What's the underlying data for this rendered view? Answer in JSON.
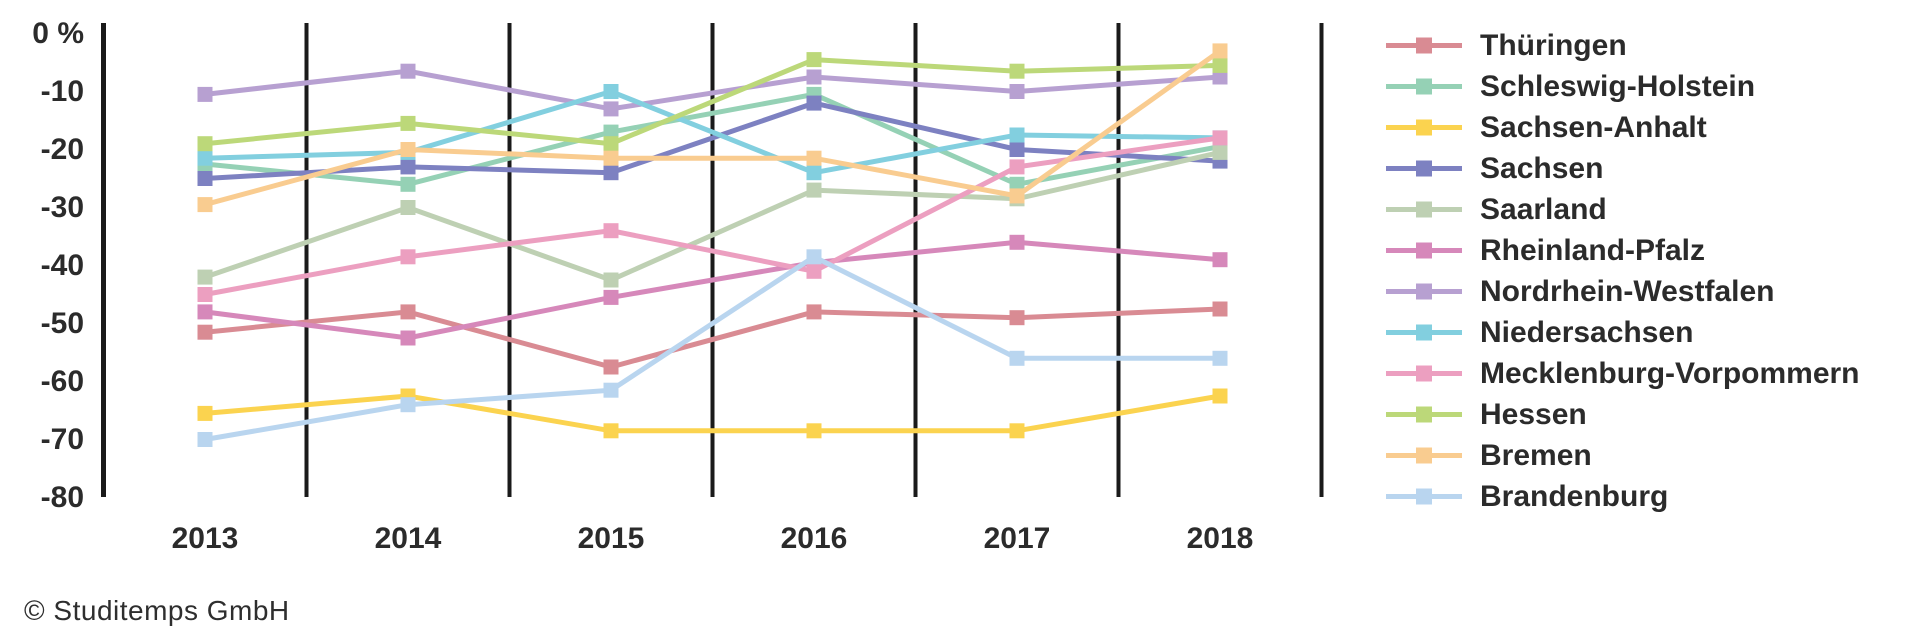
{
  "copyright": "© Studitemps GmbH",
  "colors": {
    "axis": "#1a1a1a",
    "text": "#2b2b2b"
  },
  "chart_data": {
    "type": "line",
    "title": "",
    "xlabel": "",
    "ylabel": "",
    "unit": "%",
    "x_categories": [
      "2013",
      "2014",
      "2015",
      "2016",
      "2017",
      "2018"
    ],
    "y_ticks": [
      {
        "value": 0,
        "label": "0 %"
      },
      {
        "value": -10,
        "label": "-10"
      },
      {
        "value": -20,
        "label": "-20"
      },
      {
        "value": -30,
        "label": "-30"
      },
      {
        "value": -40,
        "label": "-40"
      },
      {
        "value": -50,
        "label": "-50"
      },
      {
        "value": -60,
        "label": "-60"
      },
      {
        "value": -70,
        "label": "-70"
      },
      {
        "value": -80,
        "label": "-80"
      }
    ],
    "ylim": [
      -80,
      0
    ],
    "grid": "vertical lines between categories",
    "legend_position": "right",
    "marker": "square",
    "series": [
      {
        "name": "Thüringen",
        "color": "#d98b93",
        "values": [
          -51.5,
          -48,
          -57.5,
          -48,
          -49,
          -47.5
        ]
      },
      {
        "name": "Schleswig-Holstein",
        "color": "#95d1b5",
        "values": [
          -22.5,
          -26,
          -17,
          -10.5,
          -26,
          -19.5
        ]
      },
      {
        "name": "Sachsen-Anhalt",
        "color": "#fbd34f",
        "values": [
          -65.5,
          -62.5,
          -68.5,
          -68.5,
          -68.5,
          -62.5
        ]
      },
      {
        "name": "Sachsen",
        "color": "#7d81c1",
        "values": [
          -25,
          -23,
          -24,
          -12,
          -20,
          -22
        ]
      },
      {
        "name": "Saarland",
        "color": "#bed0b3",
        "values": [
          -42,
          -30,
          -42.5,
          -27,
          -28.5,
          -20.5
        ]
      },
      {
        "name": "Rheinland-Pfalz",
        "color": "#d688ba",
        "values": [
          -48,
          -52.5,
          -45.5,
          -39.5,
          -36,
          -39
        ]
      },
      {
        "name": "Nordrhein-Westfalen",
        "color": "#b7a0d1",
        "values": [
          -10.5,
          -6.5,
          -13,
          -7.5,
          -10,
          -7.5
        ]
      },
      {
        "name": "Niedersachsen",
        "color": "#82cfdf",
        "values": [
          -21.5,
          -20.5,
          -10,
          -24,
          -17.5,
          -18
        ]
      },
      {
        "name": "Mecklenburg-Vorpommern",
        "color": "#ec9fc0",
        "values": [
          -45,
          -38.5,
          -34,
          -41,
          -23,
          -18
        ]
      },
      {
        "name": "Hessen",
        "color": "#bcd879",
        "values": [
          -19,
          -15.5,
          -19,
          -4.5,
          -6.5,
          -5.5
        ]
      },
      {
        "name": "Bremen",
        "color": "#f9cc90",
        "values": [
          -29.5,
          -20,
          -21.5,
          -21.5,
          -28,
          -3
        ]
      },
      {
        "name": "Brandenburg",
        "color": "#b9d5ef",
        "values": [
          -70,
          -64,
          -61.5,
          -38.5,
          -56,
          -56
        ]
      }
    ]
  }
}
